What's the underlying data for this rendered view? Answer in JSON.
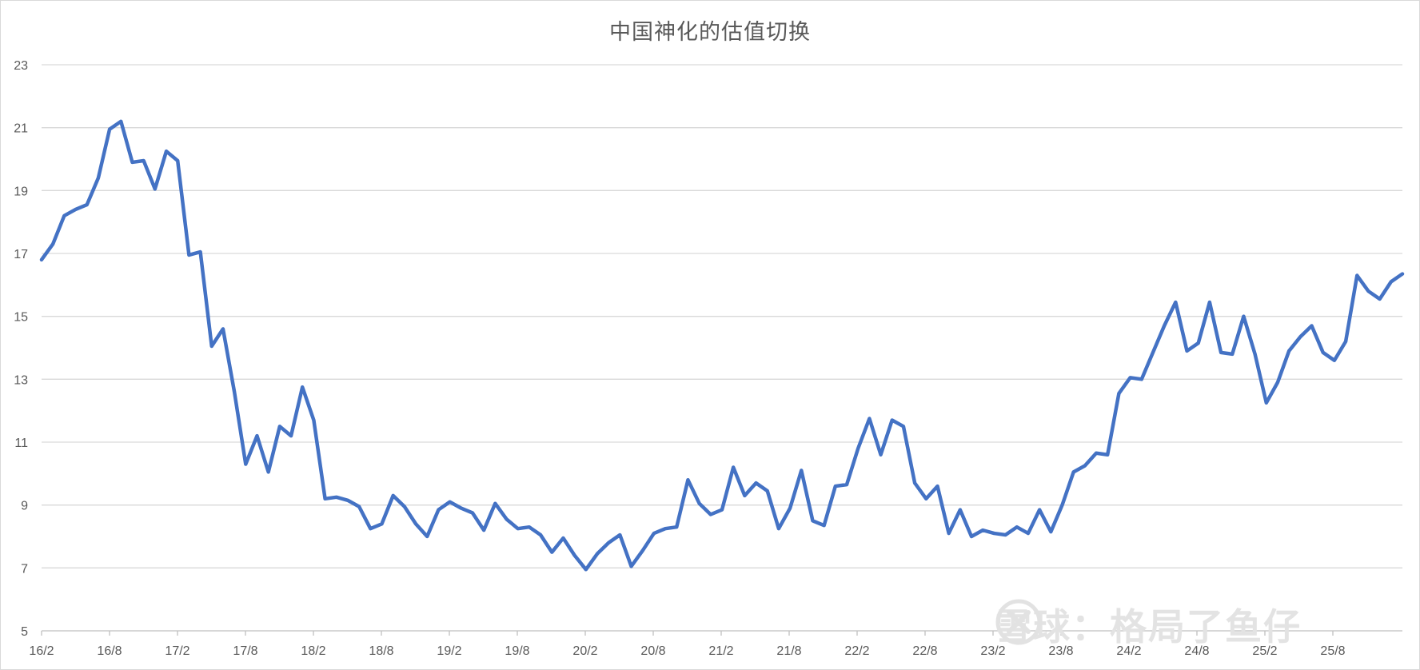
{
  "chart_data": {
    "type": "line",
    "title": "中国神化的估值切换",
    "xlabel": "",
    "ylabel": "",
    "ylim": [
      5,
      23
    ],
    "yticks": [
      5,
      7,
      9,
      11,
      13,
      15,
      17,
      19,
      21,
      23
    ],
    "xtick_labels": [
      "16/2",
      "16/8",
      "17/2",
      "17/8",
      "18/2",
      "18/8",
      "19/2",
      "19/8",
      "20/2",
      "20/8",
      "21/2",
      "21/8",
      "22/2",
      "22/8",
      "23/2",
      "23/8",
      "24/2",
      "24/8",
      "25/2",
      "25/8"
    ],
    "grid": true,
    "legend": "none",
    "series": [
      {
        "color": "#4472c4",
        "values": [
          16.8,
          17.3,
          18.2,
          18.4,
          18.55,
          19.4,
          20.95,
          21.2,
          19.9,
          19.95,
          19.05,
          20.25,
          19.95,
          16.95,
          17.05,
          14.05,
          14.6,
          12.6,
          10.3,
          11.2,
          10.05,
          11.5,
          11.2,
          12.75,
          11.7,
          9.2,
          9.25,
          9.15,
          8.95,
          8.25,
          8.4,
          9.3,
          8.95,
          8.4,
          8.0,
          8.85,
          9.1,
          8.9,
          8.75,
          8.2,
          9.05,
          8.55,
          8.25,
          8.3,
          8.05,
          7.5,
          7.95,
          7.4,
          6.95,
          7.45,
          7.8,
          8.05,
          7.05,
          7.55,
          8.1,
          8.25,
          8.3,
          9.8,
          9.05,
          8.7,
          8.85,
          10.2,
          9.3,
          9.7,
          9.45,
          8.25,
          8.9,
          10.1,
          8.5,
          8.35,
          9.6,
          9.65,
          10.8,
          11.75,
          10.6,
          11.7,
          11.5,
          9.7,
          9.2,
          9.6,
          8.1,
          8.85,
          8.0,
          8.2,
          8.1,
          8.05,
          8.3,
          8.1,
          8.85,
          8.15,
          9.0,
          10.05,
          10.25,
          10.65,
          10.6,
          12.55,
          13.05,
          13.0,
          13.85,
          14.7,
          15.45,
          13.9,
          14.15,
          15.45,
          13.85,
          13.8,
          15.0,
          13.8,
          12.25,
          12.9,
          13.9,
          14.35,
          14.7,
          13.85,
          13.6,
          14.2,
          16.3,
          15.8,
          15.55,
          16.1,
          16.35
        ]
      }
    ]
  },
  "watermark": {
    "text": "雪球：格局了鱼仔"
  }
}
